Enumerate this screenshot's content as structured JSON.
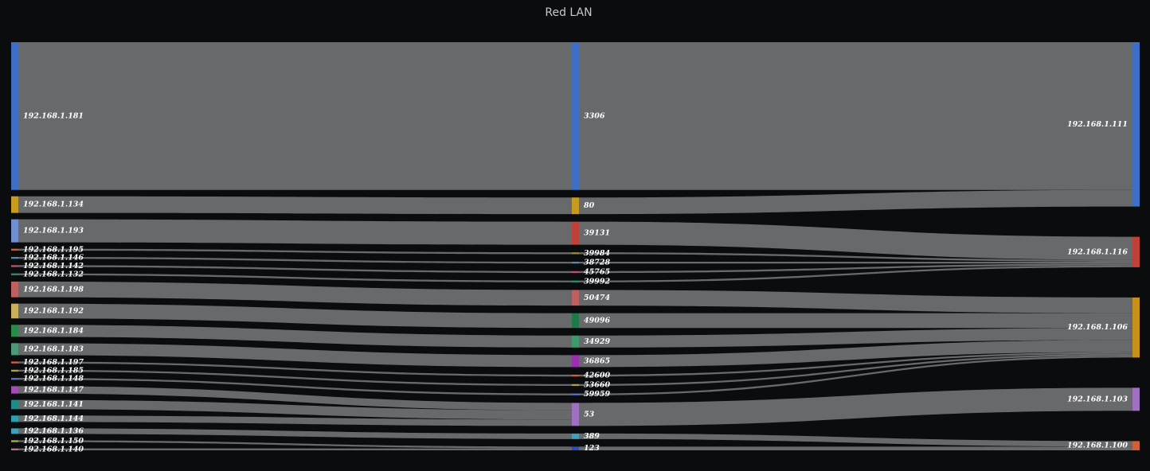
{
  "chart_data": {
    "type": "sankey",
    "title": "Red LAN",
    "link_color": "#6e6f70",
    "nodes": [
      {
        "name": "192.168.1.181",
        "color": "#3f6fc4"
      },
      {
        "name": "192.168.1.134",
        "color": "#c79a22"
      },
      {
        "name": "192.168.1.193",
        "color": "#6f8fd0"
      },
      {
        "name": "192.168.1.195",
        "color": "#c0613b"
      },
      {
        "name": "192.168.1.146",
        "color": "#5b8ab0"
      },
      {
        "name": "192.168.1.142",
        "color": "#c05070"
      },
      {
        "name": "192.168.1.132",
        "color": "#2d8f6f"
      },
      {
        "name": "192.168.1.198",
        "color": "#bf6060"
      },
      {
        "name": "192.168.1.192",
        "color": "#c8b060"
      },
      {
        "name": "192.168.1.184",
        "color": "#2a8a4a"
      },
      {
        "name": "192.168.1.183",
        "color": "#4e9a78"
      },
      {
        "name": "192.168.1.197",
        "color": "#d06040"
      },
      {
        "name": "192.168.1.185",
        "color": "#b0a040"
      },
      {
        "name": "192.168.1.148",
        "color": "#6070c0"
      },
      {
        "name": "192.168.1.147",
        "color": "#a050b0"
      },
      {
        "name": "192.168.1.141",
        "color": "#1f8a8a"
      },
      {
        "name": "192.168.1.144",
        "color": "#2aa0b0"
      },
      {
        "name": "192.168.1.136",
        "color": "#40a0b8"
      },
      {
        "name": "192.168.1.150",
        "color": "#b0b040"
      },
      {
        "name": "192.168.1.140",
        "color": "#c07090"
      },
      {
        "name": "3306",
        "color": "#3f6fc4"
      },
      {
        "name": "80",
        "color": "#c79a22"
      },
      {
        "name": "39131",
        "color": "#c0403a"
      },
      {
        "name": "39984",
        "color": "#a08a30"
      },
      {
        "name": "38728",
        "color": "#5b8ab0"
      },
      {
        "name": "45765",
        "color": "#c05070"
      },
      {
        "name": "39992",
        "color": "#2d8f6f"
      },
      {
        "name": "50474",
        "color": "#bf6060"
      },
      {
        "name": "49096",
        "color": "#1f7a4a"
      },
      {
        "name": "34929",
        "color": "#3f9a6a"
      },
      {
        "name": "36865",
        "color": "#9a30b0"
      },
      {
        "name": "42600",
        "color": "#d06040"
      },
      {
        "name": "53660",
        "color": "#b0a040"
      },
      {
        "name": "59959",
        "color": "#6070c0"
      },
      {
        "name": "53",
        "color": "#a070c0"
      },
      {
        "name": "389",
        "color": "#40a0b8"
      },
      {
        "name": "123",
        "color": "#3050b0"
      },
      {
        "name": "192.168.1.111",
        "color": "#3f6fc4"
      },
      {
        "name": "192.168.1.116",
        "color": "#c0403a"
      },
      {
        "name": "192.168.1.106",
        "color": "#c7901a"
      },
      {
        "name": "192.168.1.103",
        "color": "#a070c0"
      },
      {
        "name": "192.168.1.100",
        "color": "#d0603a"
      }
    ],
    "links": [
      {
        "source": 0,
        "target": 20,
        "value": 160
      },
      {
        "source": 1,
        "target": 21,
        "value": 18
      },
      {
        "source": 2,
        "target": 22,
        "value": 25
      },
      {
        "source": 3,
        "target": 23,
        "value": 2
      },
      {
        "source": 4,
        "target": 24,
        "value": 2
      },
      {
        "source": 5,
        "target": 25,
        "value": 2
      },
      {
        "source": 6,
        "target": 26,
        "value": 2
      },
      {
        "source": 7,
        "target": 27,
        "value": 17
      },
      {
        "source": 8,
        "target": 28,
        "value": 16
      },
      {
        "source": 9,
        "target": 29,
        "value": 13
      },
      {
        "source": 10,
        "target": 30,
        "value": 13
      },
      {
        "source": 11,
        "target": 31,
        "value": 2
      },
      {
        "source": 12,
        "target": 32,
        "value": 2
      },
      {
        "source": 13,
        "target": 33,
        "value": 2
      },
      {
        "source": 14,
        "target": 34,
        "value": 8
      },
      {
        "source": 15,
        "target": 34,
        "value": 10
      },
      {
        "source": 16,
        "target": 34,
        "value": 7
      },
      {
        "source": 17,
        "target": 35,
        "value": 6
      },
      {
        "source": 18,
        "target": 36,
        "value": 2
      },
      {
        "source": 19,
        "target": 36,
        "value": 2
      },
      {
        "source": 20,
        "target": 37,
        "value": 160
      },
      {
        "source": 21,
        "target": 37,
        "value": 18
      },
      {
        "source": 22,
        "target": 38,
        "value": 25
      },
      {
        "source": 23,
        "target": 38,
        "value": 2
      },
      {
        "source": 24,
        "target": 38,
        "value": 2
      },
      {
        "source": 25,
        "target": 38,
        "value": 2
      },
      {
        "source": 26,
        "target": 38,
        "value": 2
      },
      {
        "source": 27,
        "target": 39,
        "value": 17
      },
      {
        "source": 28,
        "target": 39,
        "value": 16
      },
      {
        "source": 29,
        "target": 39,
        "value": 13
      },
      {
        "source": 30,
        "target": 39,
        "value": 13
      },
      {
        "source": 31,
        "target": 39,
        "value": 2
      },
      {
        "source": 32,
        "target": 39,
        "value": 2
      },
      {
        "source": 33,
        "target": 39,
        "value": 2
      },
      {
        "source": 34,
        "target": 40,
        "value": 25
      },
      {
        "source": 35,
        "target": 41,
        "value": 6
      },
      {
        "source": 36,
        "target": 41,
        "value": 4
      }
    ]
  }
}
